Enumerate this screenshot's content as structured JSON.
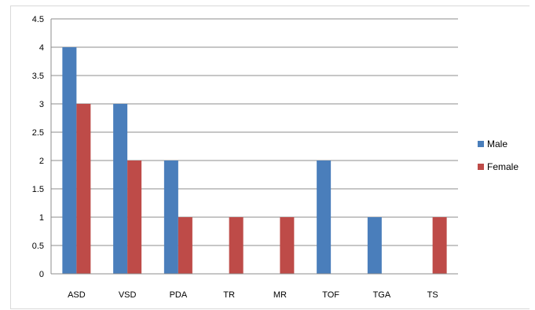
{
  "chart_data": {
    "type": "bar",
    "title": "",
    "xlabel": "",
    "ylabel": "",
    "categories": [
      "ASD",
      "VSD",
      "PDA",
      "TR",
      "MR",
      "TOF",
      "TGA",
      "TS"
    ],
    "series": [
      {
        "name": "Male",
        "color": "#4a7ebb",
        "values": [
          4,
          3,
          2,
          0,
          0,
          2,
          1,
          0
        ]
      },
      {
        "name": "Female",
        "color": "#be4b48",
        "values": [
          3,
          2,
          1,
          1,
          1,
          0,
          0,
          1
        ]
      }
    ],
    "ylim": [
      0,
      4.5
    ],
    "yticks": [
      "0",
      "0.5",
      "1",
      "1.5",
      "2",
      "2.5",
      "3",
      "3.5",
      "4",
      "4.5"
    ],
    "grid": true,
    "legend_position": "right"
  }
}
